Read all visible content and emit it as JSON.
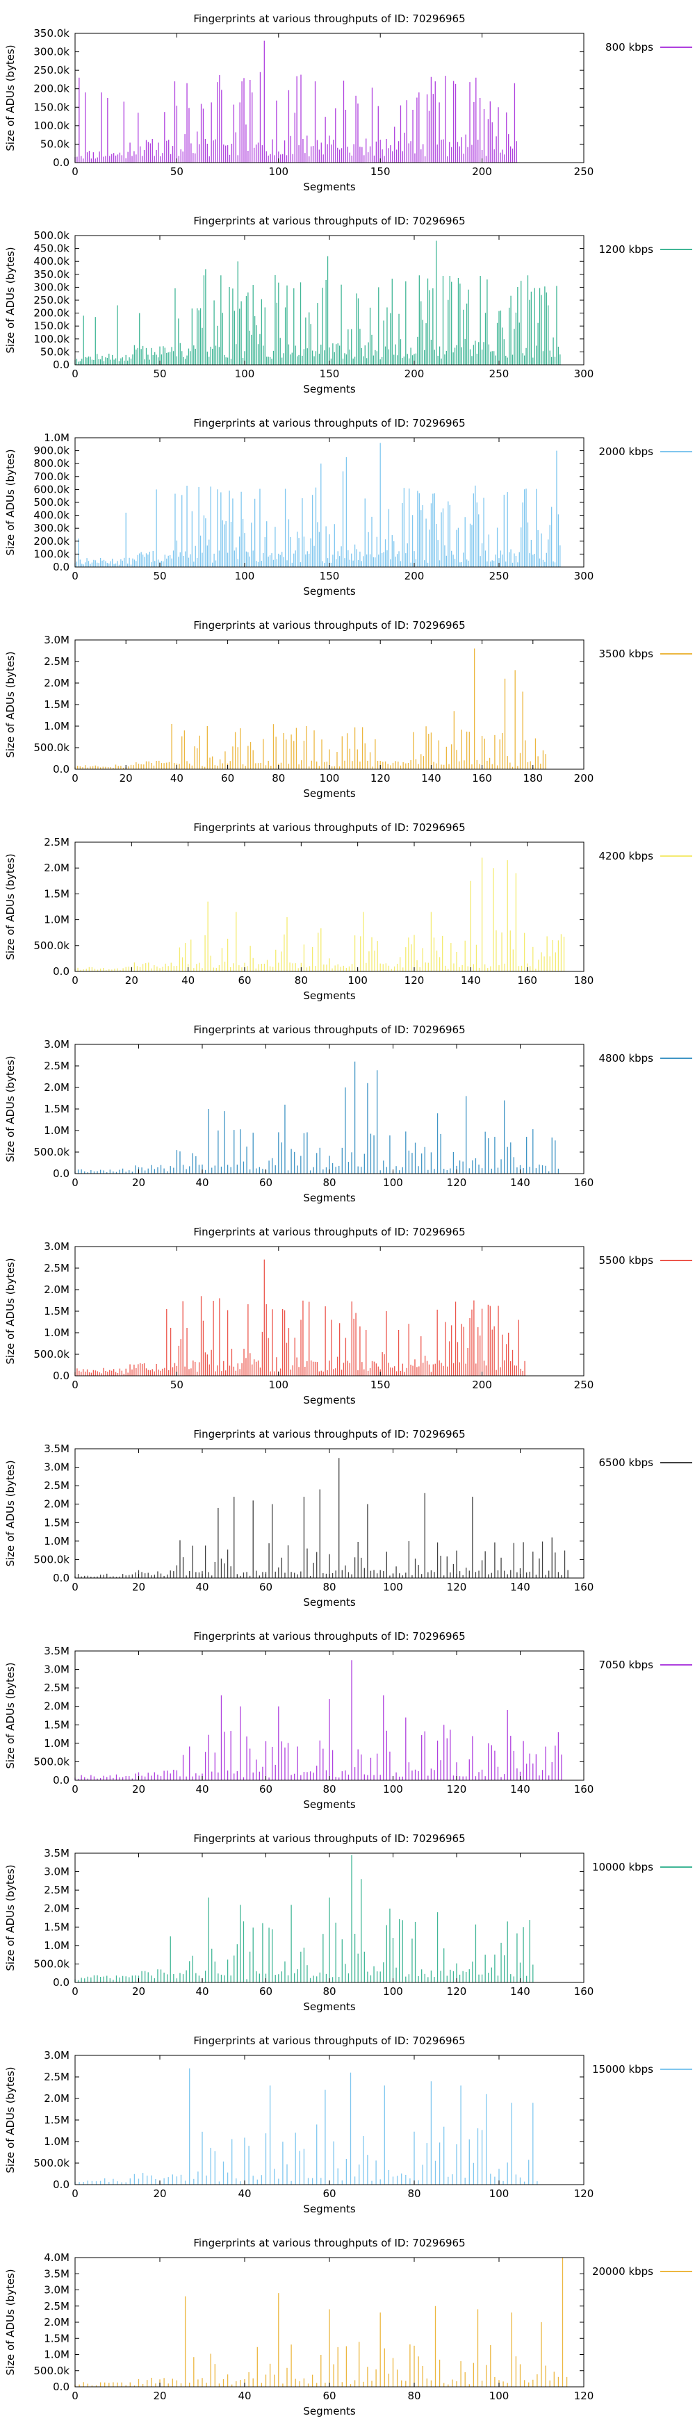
{
  "chart_data": [
    {
      "type": "bar",
      "title": "Fingerprints at various throughputs of ID: 70296965",
      "xlabel": "Segments",
      "ylabel": "Size of ADUs (bytes)",
      "legend": "800 kbps",
      "legend_placement": "top-right, outside plot",
      "color": "#9400d3",
      "xlim": [
        0,
        250
      ],
      "ylim": [
        0,
        350000
      ],
      "xticks": [
        0,
        50,
        100,
        150,
        200,
        250
      ],
      "xtick_labels": [
        "0",
        "50",
        "100",
        "150",
        "200",
        "250"
      ],
      "yticks": [
        0,
        50000,
        100000,
        150000,
        200000,
        250000,
        300000,
        350000
      ],
      "ytick_labels": [
        "0.0",
        "50.0k",
        "100.0k",
        "150.0k",
        "200.0k",
        "250.0k",
        "300.0k",
        "350.0k"
      ],
      "segments": 218,
      "peaks": [
        [
          2,
          230000
        ],
        [
          5,
          190000
        ],
        [
          13,
          190000
        ],
        [
          16,
          175000
        ],
        [
          24,
          165000
        ],
        [
          31,
          135000
        ],
        [
          55,
          215000
        ],
        [
          93,
          330000
        ],
        [
          118,
          220000
        ],
        [
          177,
          220000
        ],
        [
          208,
          150000
        ],
        [
          216,
          215000
        ]
      ],
      "baseline": 45000,
      "seed": 11
    },
    {
      "type": "bar",
      "title": "Fingerprints at various throughputs of ID: 70296965",
      "xlabel": "Segments",
      "ylabel": "Size of ADUs (bytes)",
      "legend": "1200 kbps",
      "legend_placement": "top-right, outside plot",
      "color": "#009e73",
      "xlim": [
        0,
        300
      ],
      "ylim": [
        0,
        500000
      ],
      "xticks": [
        0,
        50,
        100,
        150,
        200,
        250,
        300
      ],
      "xtick_labels": [
        "0",
        "50",
        "100",
        "150",
        "200",
        "250",
        "300"
      ],
      "yticks": [
        0,
        50000,
        100000,
        150000,
        200000,
        250000,
        300000,
        350000,
        400000,
        450000,
        500000
      ],
      "ytick_labels": [
        "0.0",
        "50.0k",
        "100.0k",
        "150.0k",
        "200.0k",
        "250.0k",
        "300.0k",
        "350.0k",
        "400.0k",
        "450.0k",
        "500.0k"
      ],
      "segments": 287,
      "peaks": [
        [
          5,
          190000
        ],
        [
          12,
          185000
        ],
        [
          25,
          230000
        ],
        [
          38,
          200000
        ],
        [
          77,
          370000
        ],
        [
          96,
          400000
        ],
        [
          102,
          280000
        ],
        [
          149,
          420000
        ],
        [
          179,
          300000
        ],
        [
          213,
          480000
        ],
        [
          243,
          330000
        ],
        [
          275,
          270000
        ]
      ],
      "baseline": 55000,
      "seed": 12
    },
    {
      "type": "bar",
      "title": "Fingerprints at various throughputs of ID: 70296965",
      "xlabel": "Segments",
      "ylabel": "Size of ADUs (bytes)",
      "legend": "2000 kbps",
      "legend_placement": "top-right, outside plot",
      "color": "#56b4e9",
      "xlim": [
        0,
        300
      ],
      "ylim": [
        0,
        1000000
      ],
      "xticks": [
        0,
        50,
        100,
        150,
        200,
        250,
        300
      ],
      "xtick_labels": [
        "0",
        "50",
        "100",
        "150",
        "200",
        "250",
        "300"
      ],
      "yticks": [
        0,
        100000,
        200000,
        300000,
        400000,
        500000,
        600000,
        700000,
        800000,
        900000,
        1000000
      ],
      "ytick_labels": [
        "0.0",
        "100.0k",
        "200.0k",
        "300.0k",
        "400.0k",
        "500.0k",
        "600.0k",
        "700.0k",
        "800.0k",
        "900.0k",
        "1.0M"
      ],
      "segments": 287,
      "peaks": [
        [
          2,
          220000
        ],
        [
          30,
          420000
        ],
        [
          48,
          600000
        ],
        [
          76,
          400000
        ],
        [
          145,
          800000
        ],
        [
          158,
          740000
        ],
        [
          160,
          850000
        ],
        [
          180,
          960000
        ],
        [
          221,
          480000
        ],
        [
          255,
          580000
        ],
        [
          284,
          900000
        ]
      ],
      "baseline": 90000,
      "seed": 13
    },
    {
      "type": "bar",
      "title": "Fingerprints at various throughputs of ID: 70296965",
      "xlabel": "Segments",
      "ylabel": "Size of ADUs (bytes)",
      "legend": "3500 kbps",
      "legend_placement": "top-right, outside plot",
      "color": "#e69f00",
      "xlim": [
        0,
        200
      ],
      "ylim": [
        0,
        3000000
      ],
      "xticks": [
        0,
        20,
        40,
        60,
        80,
        100,
        120,
        140,
        160,
        180,
        200
      ],
      "xtick_labels": [
        "0",
        "20",
        "40",
        "60",
        "80",
        "100",
        "120",
        "140",
        "160",
        "180",
        "200"
      ],
      "yticks": [
        0,
        500000,
        1000000,
        1500000,
        2000000,
        2500000,
        3000000
      ],
      "ytick_labels": [
        "0.0",
        "500.0k",
        "1.0M",
        "1.5M",
        "2.0M",
        "2.5M",
        "3.0M"
      ],
      "segments": 186,
      "peaks": [
        [
          38,
          1050000
        ],
        [
          43,
          900000
        ],
        [
          52,
          1000000
        ],
        [
          65,
          950000
        ],
        [
          91,
          1000000
        ],
        [
          140,
          850000
        ],
        [
          149,
          1350000
        ],
        [
          157,
          2800000
        ],
        [
          169,
          2100000
        ],
        [
          173,
          2300000
        ],
        [
          176,
          1800000
        ]
      ],
      "baseline": 150000,
      "seed": 14
    },
    {
      "type": "bar",
      "title": "Fingerprints at various throughputs of ID: 70296965",
      "xlabel": "Segments",
      "ylabel": "Size of ADUs (bytes)",
      "legend": "4200 kbps",
      "legend_placement": "top-right, outside plot",
      "color": "#f0e442",
      "xlim": [
        0,
        180
      ],
      "ylim": [
        0,
        2500000
      ],
      "xticks": [
        0,
        20,
        40,
        60,
        80,
        100,
        120,
        140,
        160,
        180
      ],
      "xtick_labels": [
        "0",
        "20",
        "40",
        "60",
        "80",
        "100",
        "120",
        "140",
        "160",
        "180"
      ],
      "yticks": [
        0,
        500000,
        1000000,
        1500000,
        2000000,
        2500000
      ],
      "ytick_labels": [
        "0.0",
        "500.0k",
        "1.0M",
        "1.5M",
        "2.0M",
        "2.5M"
      ],
      "segments": 174,
      "peaks": [
        [
          47,
          1350000
        ],
        [
          57,
          1150000
        ],
        [
          75,
          1050000
        ],
        [
          102,
          1150000
        ],
        [
          126,
          1150000
        ],
        [
          140,
          1750000
        ],
        [
          144,
          2200000
        ],
        [
          148,
          2000000
        ],
        [
          153,
          2150000
        ],
        [
          156,
          1900000
        ],
        [
          171,
          600000
        ]
      ],
      "baseline": 120000,
      "seed": 15
    },
    {
      "type": "bar",
      "title": "Fingerprints at various throughputs of ID: 70296965",
      "xlabel": "Segments",
      "ylabel": "Size of ADUs (bytes)",
      "legend": "4800 kbps",
      "legend_placement": "top-right, outside plot",
      "color": "#0072b2",
      "xlim": [
        0,
        160
      ],
      "ylim": [
        0,
        3000000
      ],
      "xticks": [
        0,
        20,
        40,
        60,
        80,
        100,
        120,
        140,
        160
      ],
      "xtick_labels": [
        "0",
        "20",
        "40",
        "60",
        "80",
        "100",
        "120",
        "140",
        "160"
      ],
      "yticks": [
        0,
        500000,
        1000000,
        1500000,
        2000000,
        2500000,
        3000000
      ],
      "ytick_labels": [
        "0.0",
        "500.0k",
        "1.0M",
        "1.5M",
        "2.0M",
        "2.5M",
        "3.0M"
      ],
      "segments": 153,
      "peaks": [
        [
          42,
          1500000
        ],
        [
          47,
          1450000
        ],
        [
          66,
          1600000
        ],
        [
          85,
          2000000
        ],
        [
          88,
          2600000
        ],
        [
          92,
          2100000
        ],
        [
          95,
          2400000
        ],
        [
          114,
          1400000
        ],
        [
          123,
          1800000
        ],
        [
          135,
          1700000
        ]
      ],
      "baseline": 150000,
      "seed": 16
    },
    {
      "type": "bar",
      "title": "Fingerprints at various throughputs of ID: 70296965",
      "xlabel": "Segments",
      "ylabel": "Size of ADUs (bytes)",
      "legend": "5500 kbps",
      "legend_placement": "top-right, outside plot",
      "color": "#e51e10",
      "xlim": [
        0,
        250
      ],
      "ylim": [
        0,
        3000000
      ],
      "xticks": [
        0,
        50,
        100,
        150,
        200,
        250
      ],
      "xtick_labels": [
        "0",
        "50",
        "100",
        "150",
        "200",
        "250"
      ],
      "yticks": [
        0,
        500000,
        1000000,
        1500000,
        2000000,
        2500000,
        3000000
      ],
      "ytick_labels": [
        "0.0",
        "500.0k",
        "1.0M",
        "1.5M",
        "2.0M",
        "2.5M",
        "3.0M"
      ],
      "segments": 222,
      "peaks": [
        [
          45,
          1550000
        ],
        [
          62,
          1850000
        ],
        [
          71,
          1800000
        ],
        [
          93,
          2700000
        ],
        [
          102,
          1550000
        ],
        [
          111,
          1300000
        ],
        [
          126,
          1300000
        ],
        [
          153,
          1500000
        ],
        [
          196,
          1750000
        ],
        [
          206,
          1150000
        ]
      ],
      "baseline": 250000,
      "seed": 17
    },
    {
      "type": "bar",
      "title": "Fingerprints at various throughputs of ID: 70296965",
      "xlabel": "Segments",
      "ylabel": "Size of ADUs (bytes)",
      "legend": "6500 kbps",
      "legend_placement": "top-right, outside plot",
      "color": "#000000",
      "xlim": [
        0,
        160
      ],
      "ylim": [
        0,
        3500000
      ],
      "xticks": [
        0,
        20,
        40,
        60,
        80,
        100,
        120,
        140,
        160
      ],
      "xtick_labels": [
        "0",
        "20",
        "40",
        "60",
        "80",
        "100",
        "120",
        "140",
        "160"
      ],
      "yticks": [
        0,
        500000,
        1000000,
        1500000,
        2000000,
        2500000,
        3000000,
        3500000
      ],
      "ytick_labels": [
        "0.0",
        "500.0k",
        "1.0M",
        "1.5M",
        "2.0M",
        "2.5M",
        "3.0M",
        "3.5M"
      ],
      "segments": 156,
      "peaks": [
        [
          45,
          1900000
        ],
        [
          50,
          2200000
        ],
        [
          56,
          2100000
        ],
        [
          62,
          2000000
        ],
        [
          72,
          2200000
        ],
        [
          77,
          2400000
        ],
        [
          83,
          3250000
        ],
        [
          92,
          2000000
        ],
        [
          110,
          2300000
        ],
        [
          125,
          2200000
        ],
        [
          150,
          1100000
        ]
      ],
      "baseline": 150000,
      "seed": 18
    },
    {
      "type": "bar",
      "title": "Fingerprints at various throughputs of ID: 70296965",
      "xlabel": "Segments",
      "ylabel": "Size of ADUs (bytes)",
      "legend": "7050 kbps",
      "legend_placement": "top-right, outside plot",
      "color": "#9400d3",
      "xlim": [
        0,
        160
      ],
      "ylim": [
        0,
        3500000
      ],
      "xticks": [
        0,
        20,
        40,
        60,
        80,
        100,
        120,
        140,
        160
      ],
      "xtick_labels": [
        "0",
        "20",
        "40",
        "60",
        "80",
        "100",
        "120",
        "140",
        "160"
      ],
      "yticks": [
        0,
        500000,
        1000000,
        1500000,
        2000000,
        2500000,
        3000000,
        3500000
      ],
      "ytick_labels": [
        "0.0",
        "500.0k",
        "1.0M",
        "1.5M",
        "2.0M",
        "2.5M",
        "3.0M",
        "3.5M"
      ],
      "segments": 154,
      "peaks": [
        [
          46,
          2300000
        ],
        [
          52,
          2000000
        ],
        [
          64,
          2000000
        ],
        [
          80,
          2200000
        ],
        [
          87,
          3250000
        ],
        [
          97,
          2300000
        ],
        [
          104,
          1700000
        ],
        [
          116,
          1500000
        ],
        [
          136,
          1900000
        ],
        [
          152,
          1300000
        ]
      ],
      "baseline": 200000,
      "seed": 19
    },
    {
      "type": "bar",
      "title": "Fingerprints at various throughputs of ID: 70296965",
      "xlabel": "Segments",
      "ylabel": "Size of ADUs (bytes)",
      "legend": "10000 kbps",
      "legend_placement": "top-right, outside plot",
      "color": "#009e73",
      "xlim": [
        0,
        160
      ],
      "ylim": [
        0,
        3500000
      ],
      "xticks": [
        0,
        20,
        40,
        60,
        80,
        100,
        120,
        140,
        160
      ],
      "xtick_labels": [
        "0",
        "20",
        "40",
        "60",
        "80",
        "100",
        "120",
        "140",
        "160"
      ],
      "yticks": [
        0,
        500000,
        1000000,
        1500000,
        2000000,
        2500000,
        3000000,
        3500000
      ],
      "ytick_labels": [
        "0.0",
        "500.0k",
        "1.0M",
        "1.5M",
        "2.0M",
        "2.5M",
        "3.0M",
        "3.5M"
      ],
      "segments": 145,
      "peaks": [
        [
          42,
          2300000
        ],
        [
          52,
          2100000
        ],
        [
          68,
          2100000
        ],
        [
          80,
          2300000
        ],
        [
          87,
          3450000
        ],
        [
          90,
          2800000
        ],
        [
          99,
          2000000
        ],
        [
          114,
          1900000
        ],
        [
          136,
          1650000
        ],
        [
          141,
          1500000
        ]
      ],
      "baseline": 250000,
      "seed": 20
    },
    {
      "type": "bar",
      "title": "Fingerprints at various throughputs of ID: 70296965",
      "xlabel": "Segments",
      "ylabel": "Size of ADUs (bytes)",
      "legend": "15000 kbps",
      "legend_placement": "top-right, outside plot",
      "color": "#56b4e9",
      "xlim": [
        0,
        120
      ],
      "ylim": [
        0,
        3000000
      ],
      "xticks": [
        0,
        20,
        40,
        60,
        80,
        100,
        120
      ],
      "xtick_labels": [
        "0",
        "20",
        "40",
        "60",
        "80",
        "100",
        "120"
      ],
      "yticks": [
        0,
        500000,
        1000000,
        1500000,
        2000000,
        2500000,
        3000000
      ],
      "ytick_labels": [
        "0.0",
        "500.0k",
        "1.0M",
        "1.5M",
        "2.0M",
        "2.5M",
        "3.0M"
      ],
      "segments": 110,
      "peaks": [
        [
          27,
          2700000
        ],
        [
          46,
          2300000
        ],
        [
          59,
          2200000
        ],
        [
          65,
          2600000
        ],
        [
          73,
          2300000
        ],
        [
          84,
          2400000
        ],
        [
          91,
          2300000
        ],
        [
          97,
          2100000
        ],
        [
          103,
          1900000
        ],
        [
          108,
          1900000
        ]
      ],
      "baseline": 200000,
      "seed": 21
    },
    {
      "type": "bar",
      "title": "Fingerprints at various throughputs of ID: 70296965",
      "xlabel": "Segments",
      "ylabel": "Size of ADUs (bytes)",
      "legend": "20000 kbps",
      "legend_placement": "top-right, outside plot",
      "color": "#e69f00",
      "xlim": [
        0,
        120
      ],
      "ylim": [
        0,
        4000000
      ],
      "xticks": [
        0,
        20,
        40,
        60,
        80,
        100,
        120
      ],
      "xtick_labels": [
        "0",
        "20",
        "40",
        "60",
        "80",
        "100",
        "120"
      ],
      "yticks": [
        0,
        500000,
        1000000,
        1500000,
        2000000,
        2500000,
        3000000,
        3500000,
        4000000
      ],
      "ytick_labels": [
        "0.0",
        "500.0k",
        "1.0M",
        "1.5M",
        "2.0M",
        "2.5M",
        "3.0M",
        "3.5M",
        "4.0M"
      ],
      "segments": 117,
      "peaks": [
        [
          26,
          2800000
        ],
        [
          48,
          2900000
        ],
        [
          60,
          2400000
        ],
        [
          72,
          2300000
        ],
        [
          85,
          2500000
        ],
        [
          95,
          2400000
        ],
        [
          103,
          2300000
        ],
        [
          110,
          2000000
        ],
        [
          115,
          4000000
        ]
      ],
      "baseline": 200000,
      "seed": 22
    }
  ]
}
